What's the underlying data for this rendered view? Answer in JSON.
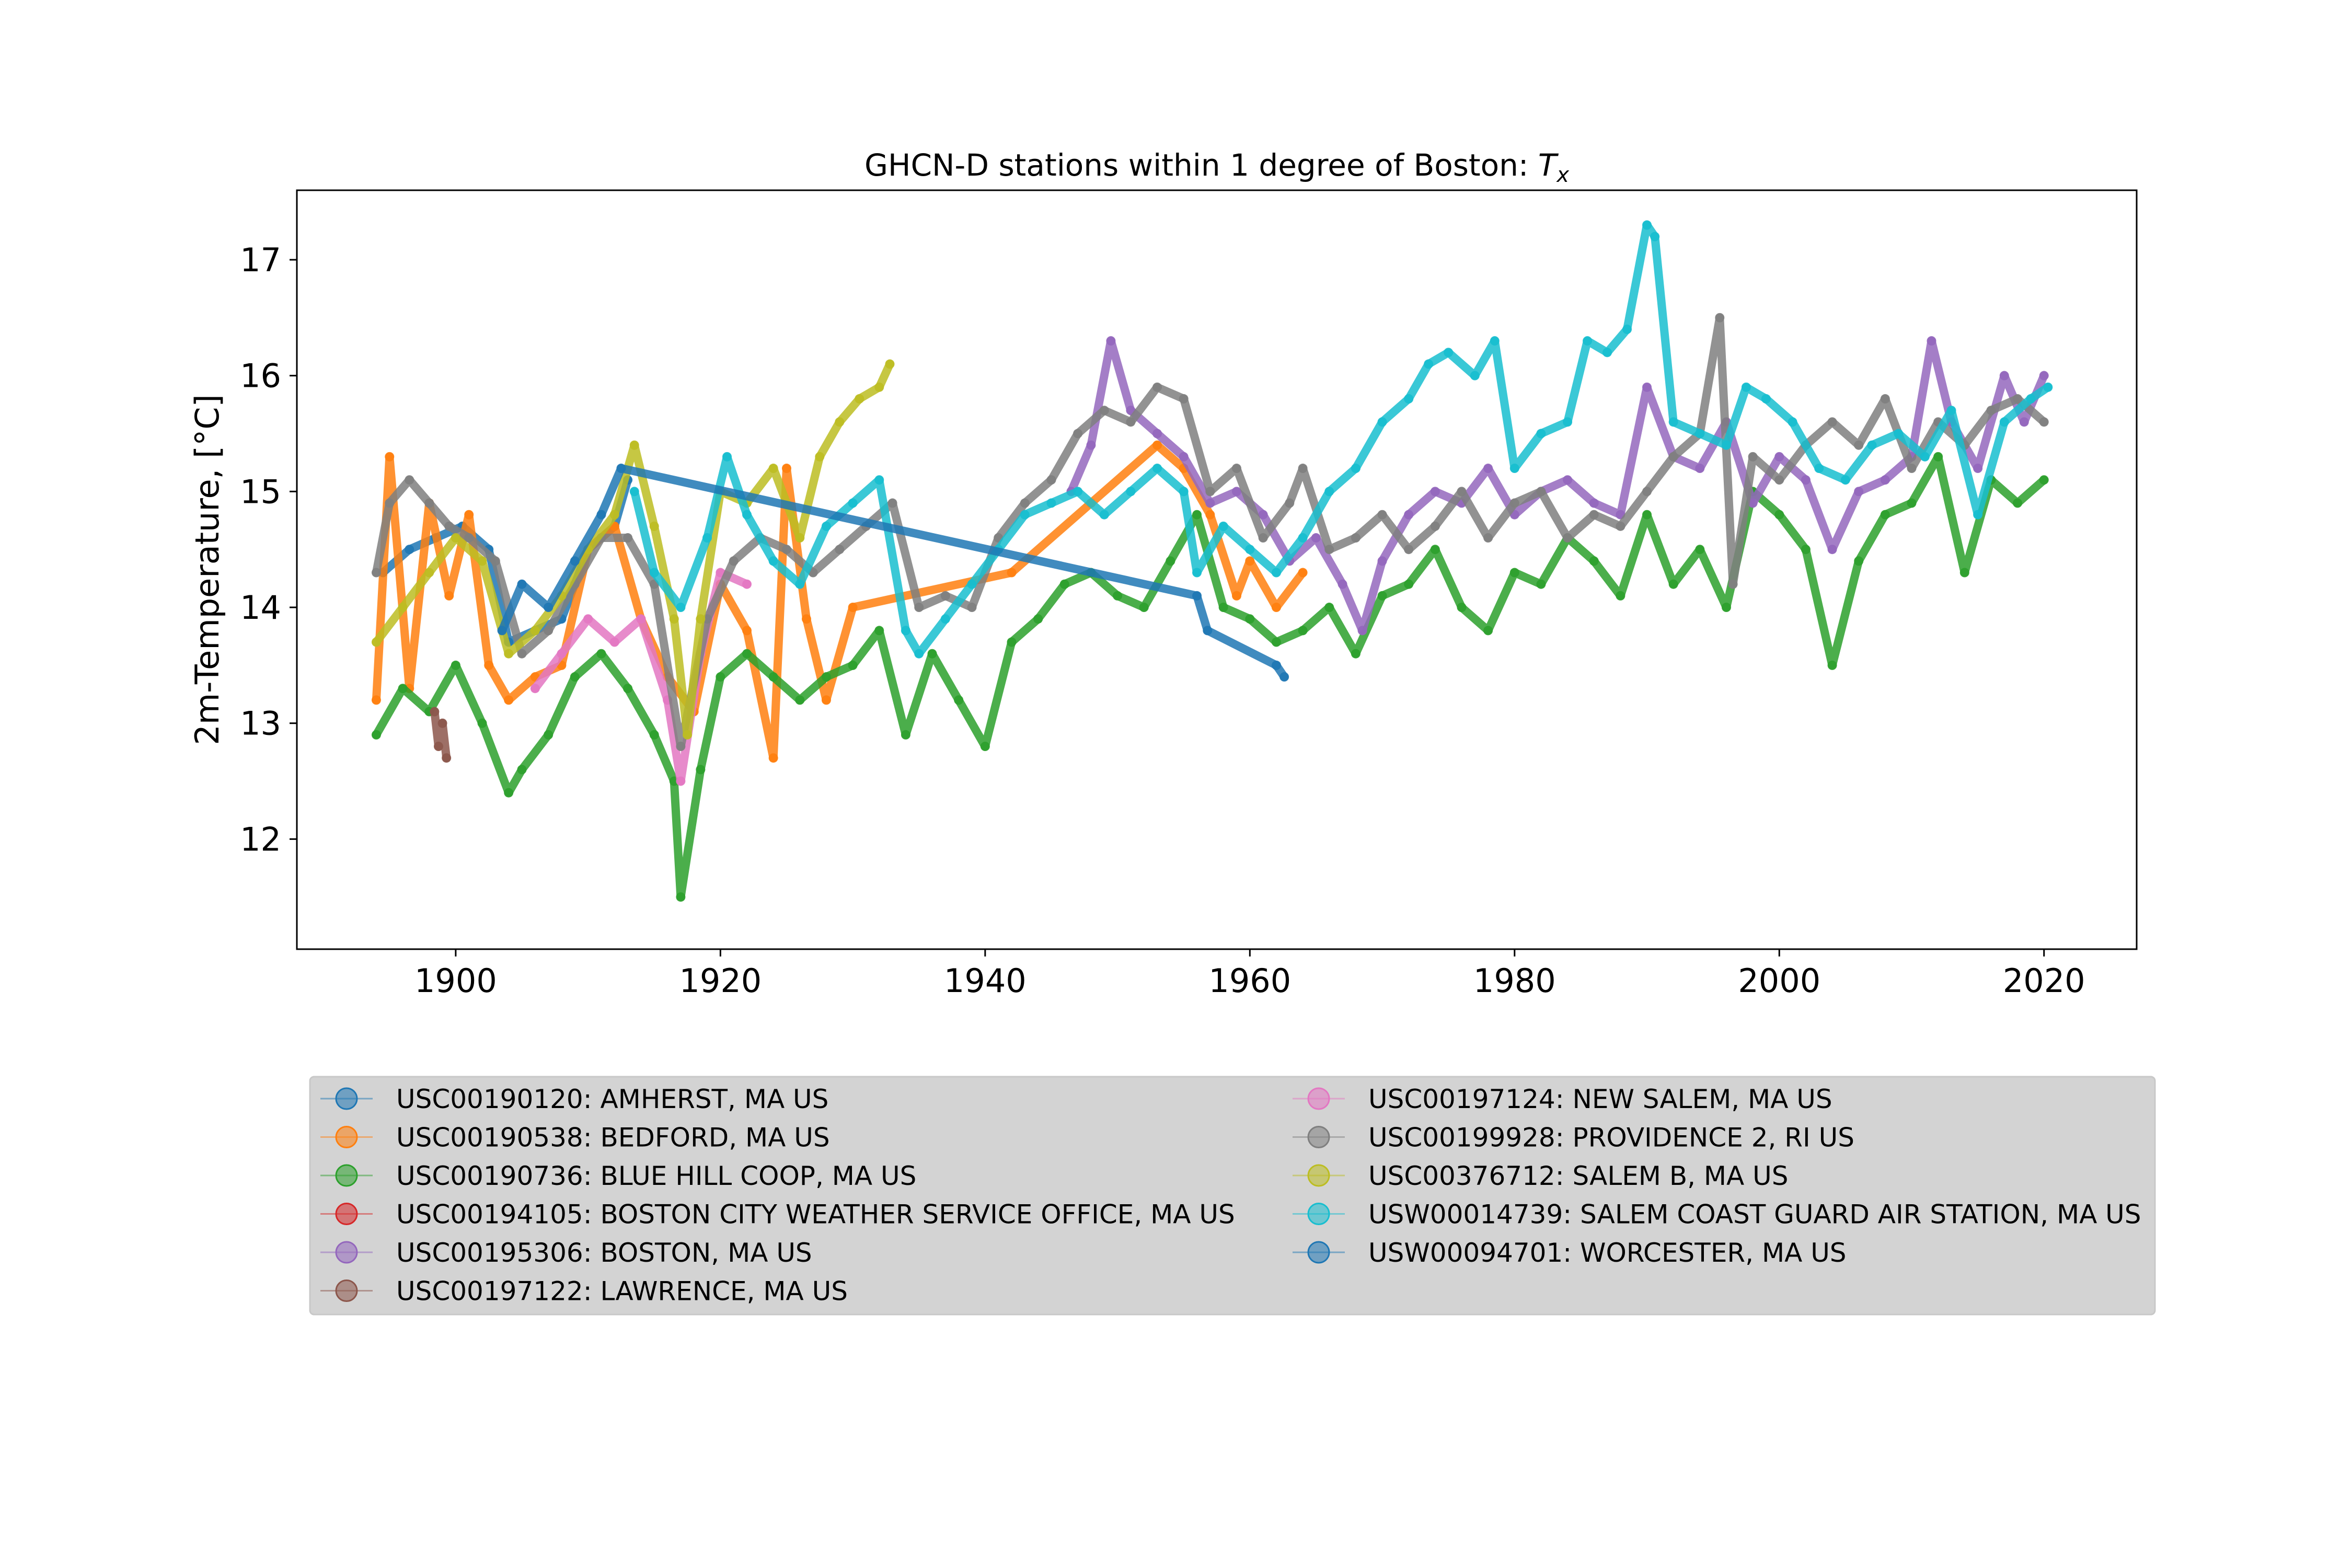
{
  "chart_data": {
    "type": "line",
    "title": "GHCN-D stations within 1 degree of Boston: ",
    "title_math": "T",
    "title_math_sub": "x",
    "xlabel": "",
    "ylabel": "2m-Temperature, [°C]",
    "xlim": [
      1888,
      2027
    ],
    "ylim": [
      11.05,
      17.6
    ],
    "xticks": [
      1900,
      1920,
      1940,
      1960,
      1980,
      2000,
      2020
    ],
    "yticks": [
      12,
      13,
      14,
      15,
      16,
      17
    ],
    "grid": false,
    "legend_position": "below",
    "legend_columns": 2,
    "series": [
      {
        "name": "USC00190120: AMHERST, MA US",
        "color": "#1f77b4",
        "x": [
          1894.5,
          1896.5,
          1898.5,
          1900.5,
          1902.5,
          1904.0,
          1906.0,
          1908.0,
          1910.0,
          1912.0,
          1913.0
        ],
        "y": [
          14.3,
          14.5,
          14.6,
          14.7,
          14.5,
          13.7,
          13.8,
          13.9,
          14.5,
          14.7,
          15.1
        ]
      },
      {
        "name": "USC00190538: BEDFORD, MA US",
        "color": "#ff7f0e",
        "x": [
          1894.0,
          1895.0,
          1896.5,
          1898.0,
          1899.5,
          1901.0,
          1902.5,
          1904.0,
          1906.0,
          1908.0,
          1910.0,
          1912.0,
          1914.0,
          1916.0,
          1918.0,
          1920.0,
          1922.0,
          1924.0,
          1925.0,
          1926.5,
          1928.0,
          1930.0,
          1942.0,
          1948.0,
          1953.0,
          1955.0,
          1957.0,
          1959.0,
          1960.0,
          1962.0,
          1964.0
        ],
        "y": [
          13.2,
          15.3,
          13.3,
          14.9,
          14.1,
          14.8,
          13.5,
          13.2,
          13.4,
          13.5,
          14.5,
          14.7,
          13.9,
          13.4,
          13.1,
          14.2,
          13.8,
          12.7,
          15.2,
          13.9,
          13.2,
          14.0,
          14.3,
          14.9,
          15.4,
          15.2,
          14.8,
          14.1,
          14.4,
          14.0,
          14.3
        ]
      },
      {
        "name": "USC00190736: BLUE HILL COOP, MA US",
        "color": "#2ca02c",
        "x": [
          1894.0,
          1896.0,
          1898.0,
          1900.0,
          1902.0,
          1904.0,
          1905.0,
          1907.0,
          1909.0,
          1911.0,
          1913.0,
          1915.0,
          1916.5,
          1917.0,
          1918.5,
          1920.0,
          1922.0,
          1924.0,
          1926.0,
          1928.0,
          1930.0,
          1932.0,
          1934.0,
          1936.0,
          1938.0,
          1940.0,
          1942.0,
          1944.0,
          1946.0,
          1948.0,
          1950.0,
          1952.0,
          1954.0,
          1956.0,
          1958.0,
          1960.0,
          1962.0,
          1964.0,
          1966.0,
          1968.0,
          1970.0,
          1972.0,
          1974.0,
          1976.0,
          1978.0,
          1980.0,
          1982.0,
          1984.0,
          1986.0,
          1988.0,
          1990.0,
          1992.0,
          1994.0,
          1996.0,
          1998.0,
          2000.0,
          2002.0,
          2004.0,
          2006.0,
          2008.0,
          2010.0,
          2012.0,
          2014.0,
          2016.0,
          2018.0,
          2020.0
        ],
        "y": [
          12.9,
          13.3,
          13.1,
          13.5,
          13.0,
          12.4,
          12.6,
          12.9,
          13.4,
          13.6,
          13.3,
          12.9,
          12.5,
          11.5,
          12.6,
          13.4,
          13.6,
          13.4,
          13.2,
          13.4,
          13.5,
          13.8,
          12.9,
          13.6,
          13.2,
          12.8,
          13.7,
          13.9,
          14.2,
          14.3,
          14.1,
          14.0,
          14.4,
          14.8,
          14.0,
          13.9,
          13.7,
          13.8,
          14.0,
          13.6,
          14.1,
          14.2,
          14.5,
          14.0,
          13.8,
          14.3,
          14.2,
          14.6,
          14.4,
          14.1,
          14.8,
          14.2,
          14.5,
          14.0,
          15.0,
          14.8,
          14.5,
          13.5,
          14.4,
          14.8,
          14.9,
          15.3,
          14.3,
          15.1,
          14.9,
          15.1
        ]
      },
      {
        "name": "USC00194105: BOSTON CITY WEATHER SERVICE OFFICE, MA US",
        "color": "#d62728",
        "x": [],
        "y": []
      },
      {
        "name": "USC00195306: BOSTON, MA US",
        "color": "#9467bd",
        "x": [
          1946.5,
          1948.0,
          1949.5,
          1951.0,
          1953.0,
          1955.0,
          1957.0,
          1959.0,
          1961.0,
          1963.0,
          1965.0,
          1967.0,
          1968.5,
          1970.0,
          1972.0,
          1974.0,
          1976.0,
          1978.0,
          1980.0,
          1982.0,
          1984.0,
          1986.0,
          1988.0,
          1990.0,
          1992.0,
          1994.0,
          1996.0,
          1998.0,
          2000.0,
          2002.0,
          2004.0,
          2006.0,
          2008.0,
          2010.0,
          2011.5,
          2013.0,
          2015.0,
          2017.0,
          2018.5,
          2020.0
        ],
        "y": [
          15.0,
          15.4,
          16.3,
          15.7,
          15.5,
          15.3,
          14.9,
          15.0,
          14.8,
          14.4,
          14.6,
          14.2,
          13.8,
          14.4,
          14.8,
          15.0,
          14.9,
          15.2,
          14.8,
          15.0,
          15.1,
          14.9,
          14.8,
          15.9,
          15.3,
          15.2,
          15.6,
          14.9,
          15.3,
          15.1,
          14.5,
          15.0,
          15.1,
          15.3,
          16.3,
          15.6,
          15.2,
          16.0,
          15.6,
          16.0
        ]
      },
      {
        "name": "USC00197122: LAWRENCE, MA US",
        "color": "#8c564b",
        "x": [
          1898.4,
          1898.7,
          1899.0,
          1899.3
        ],
        "y": [
          13.1,
          12.8,
          13.0,
          12.7
        ]
      },
      {
        "name": "USC00197124: NEW SALEM, MA US",
        "color": "#e377c2",
        "x": [
          1906.0,
          1908.0,
          1910.0,
          1912.0,
          1914.0,
          1916.0,
          1917.0,
          1918.5,
          1920.0,
          1922.0
        ],
        "y": [
          13.3,
          13.6,
          13.9,
          13.7,
          13.9,
          13.2,
          12.5,
          13.6,
          14.3,
          14.2
        ]
      },
      {
        "name": "USC00199928: PROVIDENCE 2, RI US",
        "color": "#7f7f7f",
        "x": [
          1894.0,
          1895.0,
          1896.5,
          1898.0,
          1899.5,
          1901.0,
          1903.0,
          1905.0,
          1907.0,
          1909.0,
          1911.0,
          1913.0,
          1915.0,
          1917.0,
          1919.0,
          1921.0,
          1923.0,
          1925.0,
          1927.0,
          1929.0,
          1931.0,
          1933.0,
          1935.0,
          1937.0,
          1939.0,
          1941.0,
          1943.0,
          1945.0,
          1947.0,
          1949.0,
          1951.0,
          1953.0,
          1955.0,
          1957.0,
          1959.0,
          1961.0,
          1963.0,
          1964.0,
          1966.0,
          1968.0,
          1970.0,
          1972.0,
          1974.0,
          1976.0,
          1978.0,
          1980.0,
          1982.0,
          1984.0,
          1986.0,
          1988.0,
          1990.0,
          1992.0,
          1994.0,
          1995.5,
          1996.5,
          1998.0,
          2000.0,
          2002.0,
          2004.0,
          2006.0,
          2008.0,
          2010.0,
          2012.0,
          2014.0,
          2016.0,
          2018.0,
          2020.0
        ],
        "y": [
          14.3,
          14.9,
          15.1,
          14.9,
          14.7,
          14.6,
          14.4,
          13.6,
          13.8,
          14.2,
          14.6,
          14.6,
          14.2,
          12.8,
          13.9,
          14.4,
          14.6,
          14.5,
          14.3,
          14.5,
          14.7,
          14.9,
          14.0,
          14.1,
          14.0,
          14.6,
          14.9,
          15.1,
          15.5,
          15.7,
          15.6,
          15.9,
          15.8,
          15.0,
          15.2,
          14.6,
          14.9,
          15.2,
          14.5,
          14.6,
          14.8,
          14.5,
          14.7,
          15.0,
          14.6,
          14.9,
          15.0,
          14.6,
          14.8,
          14.7,
          15.0,
          15.3,
          15.5,
          16.5,
          14.2,
          15.3,
          15.1,
          15.4,
          15.6,
          15.4,
          15.8,
          15.2,
          15.6,
          15.4,
          15.7,
          15.8,
          15.6
        ]
      },
      {
        "name": "USC00376712: SALEM B, MA US",
        "color": "#bcbd22",
        "x": [
          1894.0,
          1896.0,
          1898.0,
          1900.0,
          1902.0,
          1904.0,
          1906.0,
          1908.0,
          1910.0,
          1912.0,
          1913.5,
          1915.0,
          1916.5,
          1917.5,
          1918.5,
          1920.0,
          1922.0,
          1924.0,
          1926.0,
          1927.5,
          1929.0,
          1930.5,
          1932.0,
          1932.8
        ],
        "y": [
          13.7,
          14.0,
          14.3,
          14.6,
          14.4,
          13.6,
          13.8,
          14.1,
          14.5,
          14.8,
          15.4,
          14.7,
          13.9,
          12.9,
          13.9,
          15.0,
          14.9,
          15.2,
          14.6,
          15.3,
          15.6,
          15.8,
          15.9,
          16.1
        ]
      },
      {
        "name": "USW00014739: SALEM COAST GUARD AIR STATION, MA US",
        "color": "#17becf",
        "x": [
          1913.5,
          1915.0,
          1917.0,
          1919.0,
          1920.5,
          1922.0,
          1924.0,
          1926.0,
          1928.0,
          1930.0,
          1932.0,
          1934.0,
          1935.0,
          1937.0,
          1939.0,
          1941.0,
          1943.0,
          1945.0,
          1947.0,
          1949.0,
          1951.0,
          1953.0,
          1955.0,
          1956.0,
          1958.0,
          1960.0,
          1962.0,
          1964.0,
          1966.0,
          1968.0,
          1970.0,
          1972.0,
          1973.5,
          1975.0,
          1977.0,
          1978.5,
          1980.0,
          1982.0,
          1984.0,
          1985.5,
          1987.0,
          1988.5,
          1990.0,
          1990.6,
          1992.0,
          1994.0,
          1996.0,
          1997.5,
          1999.0,
          2001.0,
          2003.0,
          2005.0,
          2007.0,
          2009.0,
          2011.0,
          2013.0,
          2015.0,
          2017.0,
          2019.0,
          2020.3
        ],
        "y": [
          15.0,
          14.3,
          14.0,
          14.6,
          15.3,
          14.8,
          14.4,
          14.2,
          14.7,
          14.9,
          15.1,
          13.8,
          13.6,
          13.9,
          14.2,
          14.5,
          14.8,
          14.9,
          15.0,
          14.8,
          15.0,
          15.2,
          15.0,
          14.3,
          14.7,
          14.5,
          14.3,
          14.6,
          15.0,
          15.2,
          15.6,
          15.8,
          16.1,
          16.2,
          16.0,
          16.3,
          15.2,
          15.5,
          15.6,
          16.3,
          16.2,
          16.4,
          17.3,
          17.2,
          15.6,
          15.5,
          15.4,
          15.9,
          15.8,
          15.6,
          15.2,
          15.1,
          15.4,
          15.5,
          15.3,
          15.7,
          14.8,
          15.6,
          15.8,
          15.9
        ]
      },
      {
        "name": "USW00094701: WORCESTER, MA US",
        "color": "#1f77b4",
        "x": [
          1903.5,
          1905.0,
          1907.0,
          1909.0,
          1911.0,
          1912.5,
          1956.0,
          1956.8,
          1962.0,
          1962.6
        ],
        "y": [
          13.8,
          14.2,
          14.0,
          14.4,
          14.8,
          15.2,
          14.1,
          13.8,
          13.5,
          13.4
        ]
      }
    ]
  }
}
